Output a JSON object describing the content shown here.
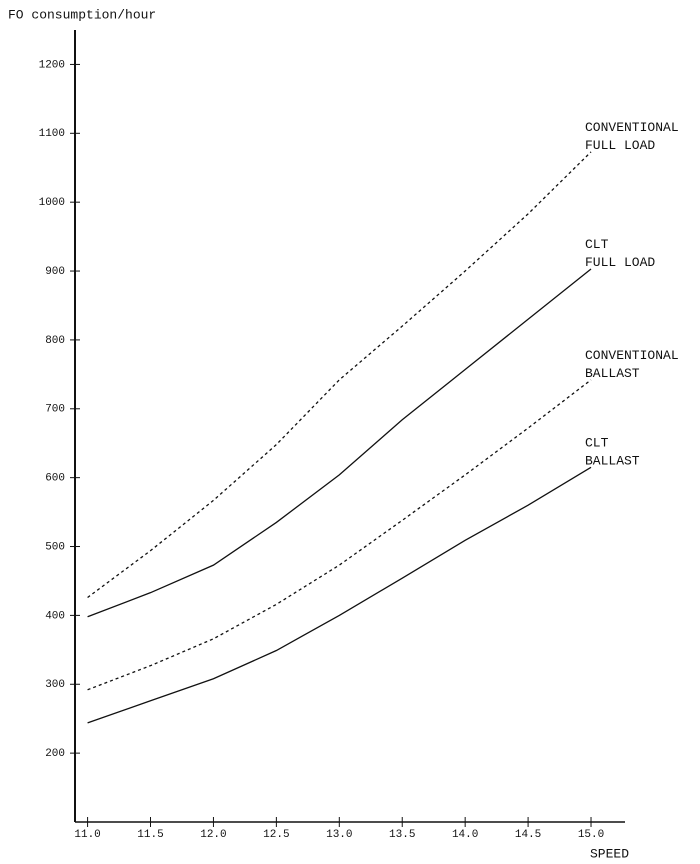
{
  "chart_data": {
    "type": "line",
    "title": "FO consumption/hour",
    "x_label": "SPEED",
    "x": [
      11.0,
      11.5,
      12.0,
      12.5,
      13.0,
      13.5,
      14.0,
      14.5,
      15.0
    ],
    "series": [
      {
        "name": "CONVENTIONAL FULL LOAD",
        "color": "#111111",
        "dashed": true,
        "values": [
          426,
          494,
          567,
          648,
          742,
          820,
          900,
          983,
          1073
        ]
      },
      {
        "name": "CLT FULL LOAD",
        "color": "#111111",
        "dashed": false,
        "values": [
          398,
          433,
          473,
          535,
          604,
          684,
          757,
          830,
          903
        ]
      },
      {
        "name": "CONVENTIONAL BALLAST",
        "color": "#111111",
        "dashed": true,
        "values": [
          292,
          327,
          366,
          416,
          473,
          538,
          604,
          672,
          742
        ]
      },
      {
        "name": "CLT BALLAST",
        "color": "#111111",
        "dashed": false,
        "values": [
          244,
          276,
          308,
          349,
          400,
          454,
          509,
          560,
          615
        ]
      }
    ],
    "xlim": [
      10.9,
      15.27
    ],
    "ylim": [
      100,
      1250
    ],
    "xticks": [
      {
        "value": 11,
        "label": "11.0"
      },
      11.5,
      {
        "value": 12,
        "label": "12.0"
      },
      12.5,
      {
        "value": 13,
        "label": "13.0"
      },
      13.5,
      {
        "value": 14,
        "label": "14.0"
      },
      14.5,
      {
        "value": 15,
        "label": "15.0"
      }
    ],
    "yticks": [
      200,
      300,
      400,
      500,
      600,
      700,
      800,
      900,
      1000,
      1100,
      1200
    ],
    "grid": false
  }
}
